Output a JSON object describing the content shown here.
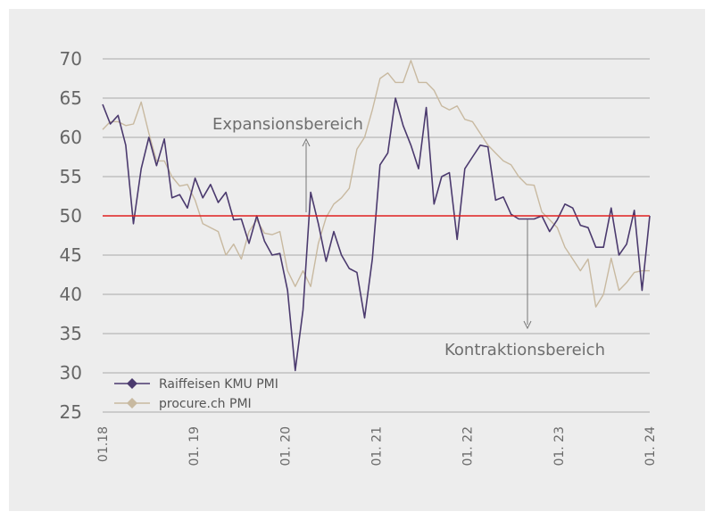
{
  "chart_data": {
    "type": "line",
    "title": "",
    "xlabel": "",
    "ylabel": "",
    "ylim": [
      25,
      70
    ],
    "yticks": [
      "25",
      "30",
      "35",
      "40",
      "45",
      "50",
      "55",
      "60",
      "65",
      "70"
    ],
    "xticks": [
      {
        "label": "01.18",
        "year": 2018
      },
      {
        "label": "01. 19",
        "year": 2019
      },
      {
        "label": "01. 20",
        "year": 2020
      },
      {
        "label": "01. 21",
        "year": 2021
      },
      {
        "label": "01. 22",
        "year": 2022
      },
      {
        "label": "01. 23",
        "year": 2023
      },
      {
        "label": "01. 24",
        "year": 2024
      }
    ],
    "x_start": "2018-01",
    "x_end": "2024-01",
    "threshold": {
      "value": 50,
      "color": "#e02020"
    },
    "annotations": [
      {
        "text": "Expansionsbereich",
        "direction": "up"
      },
      {
        "text": "Kontraktionsbereich",
        "direction": "down"
      }
    ],
    "legend_position": "bottom-left",
    "grid": "horizontal",
    "series": [
      {
        "name": "Raiffeisen KMU PMI",
        "color": "#4b3a6e",
        "values": [
          64.2,
          61.7,
          62.8,
          59.0,
          49.0,
          56.0,
          60.0,
          56.4,
          59.8,
          52.3,
          52.7,
          51.0,
          54.8,
          52.3,
          54.0,
          51.7,
          53.0,
          49.5,
          49.6,
          46.5,
          50.0,
          46.8,
          45.0,
          45.2,
          40.5,
          30.3,
          38.0,
          53.0,
          49.0,
          44.2,
          48.0,
          45.0,
          43.3,
          42.8,
          37.0,
          44.5,
          56.5,
          58.0,
          65.0,
          61.5,
          59.0,
          56.0,
          63.8,
          51.5,
          55.0,
          55.5,
          47.0,
          56.0,
          57.5,
          59.0,
          58.8,
          52.0,
          52.4,
          50.2,
          49.6,
          49.6,
          49.6,
          50.0,
          48.0,
          49.5,
          51.5,
          51.0,
          48.8,
          48.5,
          46.0,
          46.0,
          51.0,
          45.0,
          46.4,
          50.7,
          40.5,
          50.0
        ]
      },
      {
        "name": "procure.ch PMI",
        "color": "#c8b9a0",
        "values": [
          61.0,
          62.0,
          62.0,
          61.5,
          61.7,
          64.5,
          60.5,
          57.0,
          57.0,
          55.0,
          53.8,
          54.0,
          52.0,
          49.0,
          48.5,
          48.0,
          45.0,
          46.4,
          44.5,
          48.0,
          49.5,
          47.8,
          47.6,
          48.0,
          43.0,
          41.0,
          43.0,
          41.0,
          46.5,
          49.8,
          51.5,
          52.3,
          53.5,
          58.5,
          60.0,
          63.5,
          67.5,
          68.2,
          67.0,
          67.0,
          69.8,
          67.0,
          67.0,
          66.0,
          64.0,
          63.5,
          64.0,
          62.3,
          62.0,
          60.5,
          59.0,
          58.0,
          57.0,
          56.5,
          55.0,
          54.0,
          53.9,
          50.5,
          49.5,
          48.5,
          46.0,
          44.5,
          43.0,
          44.5,
          38.4,
          40.0,
          44.6,
          40.5,
          41.5,
          42.8,
          43.0,
          43.0
        ]
      }
    ]
  }
}
